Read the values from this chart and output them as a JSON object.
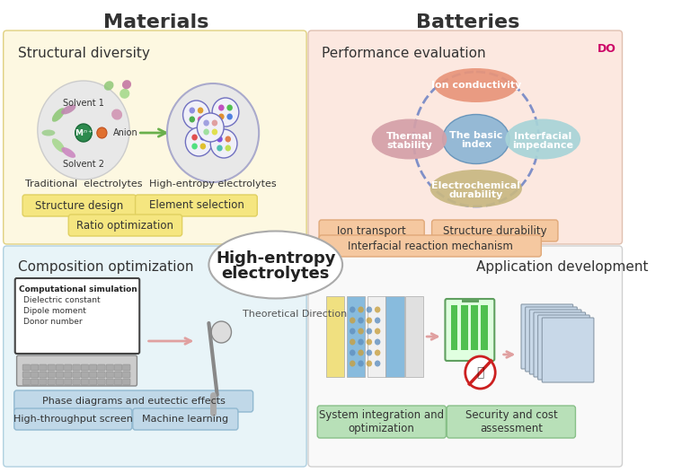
{
  "title_materials": "Materials",
  "title_batteries": "Batteries",
  "bg_color_top_left": "#fdf8e1",
  "bg_color_top_right": "#fce8e0",
  "bg_color_bot_left": "#e8f4f8",
  "bg_color_bot_right": "#ffffff",
  "overall_bg": "#f5f5f5",
  "section_structural": "Structural diversity",
  "section_performance": "Performance evaluation",
  "section_composition": "Composition optimization",
  "section_application": "Application development",
  "center_label_line1": "High-entropy",
  "center_label_line2": "electrolytes",
  "yellow_tags_left": [
    "Structure design",
    "Element selection",
    "Ratio optimization"
  ],
  "orange_tags_right": [
    "Ion transport",
    "Structure durability",
    "Interfacial reaction mechanism"
  ],
  "blue_tags_bot_left": [
    "Phase diagrams and eutectic effects",
    "High-throughput screen",
    "Machine learning"
  ],
  "green_tags_bot_right": [
    "System integration and\noptimization",
    "Security and cost\nassessment"
  ],
  "ellipse_labels": [
    "Ion conductivity",
    "Thermal\nstability",
    "The basic\nindex",
    "Interfacial\nimpedance",
    "Electrochemical\ndurability"
  ],
  "ellipse_colors": [
    "#e8957a",
    "#d4a0a8",
    "#8ab4d4",
    "#a8d4d8",
    "#c8b882"
  ],
  "comp_sim_title": "Computational simulation",
  "comp_sim_items": [
    "Dielectric constant",
    "Dipole moment",
    "Donor number"
  ],
  "theoretical_label": "Theoretical Direction",
  "do_text": "DO"
}
